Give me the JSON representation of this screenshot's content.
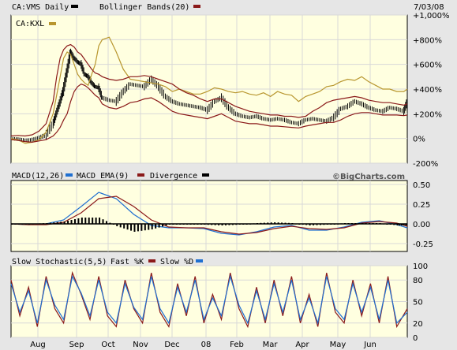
{
  "header": {
    "symbol_label": "CA:VMS Daily",
    "bollinger_label": "Bollinger Bands(20)",
    "date": "7/03/08",
    "compare_label": "CA:KXL"
  },
  "brand": "©BigCharts.com",
  "colors": {
    "panel_bg": "#ffffe0",
    "grid": "#d8d8d8",
    "price": "#000000",
    "compare": "#b8962e",
    "bollinger": "#8b1a1a",
    "macd": "#1f6fd1",
    "macd_ema": "#8b1a1a",
    "slow_k": "#8b1a1a",
    "slow_d": "#1f6fd1"
  },
  "chart_data": [
    {
      "type": "line",
      "title": "CA:VMS Daily",
      "y_axis_side": "right",
      "y_unit": "%",
      "ylim": [
        -200,
        1000
      ],
      "yticks": [
        -200,
        0,
        200,
        400,
        600,
        800,
        1000
      ],
      "ytick_labels": [
        "-200%",
        "0%",
        "+200%",
        "+400%",
        "+600%",
        "+800%",
        "+1,000%"
      ],
      "x_months": [
        "Aug",
        "Sep",
        "Oct",
        "Nov",
        "Dec",
        "08",
        "Feb",
        "Mar",
        "Apr",
        "May",
        "Jun"
      ],
      "x": [
        0,
        4,
        8,
        12,
        16,
        20,
        24,
        26,
        28,
        30,
        32,
        34,
        36,
        38,
        40,
        42,
        44,
        46,
        48,
        50,
        52,
        56,
        60,
        64,
        68,
        72,
        76,
        80,
        84,
        88,
        92,
        96,
        100,
        104,
        108,
        112,
        116,
        120,
        124,
        128,
        132,
        136,
        140,
        144,
        148,
        152,
        156,
        160,
        164,
        168,
        172,
        176,
        180,
        184,
        188,
        192,
        196,
        200,
        204,
        208,
        212,
        216,
        220,
        224,
        226
      ],
      "series": [
        {
          "name": "CA:VMS Daily",
          "style": "ohlc-bars",
          "values": [
            0,
            -5,
            -15,
            -10,
            5,
            30,
            120,
            210,
            300,
            400,
            550,
            700,
            650,
            620,
            600,
            520,
            500,
            450,
            420,
            410,
            330,
            310,
            300,
            380,
            440,
            430,
            420,
            480,
            420,
            340,
            300,
            280,
            270,
            260,
            250,
            230,
            300,
            330,
            250,
            200,
            180,
            170,
            180,
            160,
            150,
            160,
            150,
            130,
            120,
            150,
            160,
            150,
            140,
            170,
            240,
            260,
            300,
            280,
            250,
            230,
            220,
            250,
            240,
            220,
            300
          ]
        },
        {
          "name": "CA:KXL",
          "values": [
            0,
            -10,
            -40,
            -30,
            -10,
            50,
            200,
            350,
            500,
            650,
            700,
            680,
            600,
            520,
            480,
            450,
            430,
            520,
            600,
            750,
            800,
            820,
            700,
            560,
            480,
            470,
            460,
            450,
            440,
            420,
            380,
            400,
            380,
            360,
            360,
            380,
            410,
            400,
            380,
            370,
            380,
            360,
            350,
            370,
            340,
            380,
            360,
            350,
            300,
            340,
            360,
            380,
            420,
            430,
            460,
            480,
            470,
            500,
            460,
            430,
            400,
            400,
            380,
            380,
            400
          ]
        },
        {
          "name": "Bollinger Bands(20) upper",
          "values": [
            20,
            25,
            20,
            30,
            60,
            120,
            300,
            500,
            650,
            720,
            750,
            760,
            740,
            700,
            680,
            640,
            600,
            560,
            530,
            520,
            500,
            480,
            470,
            480,
            500,
            500,
            510,
            500,
            480,
            460,
            440,
            400,
            370,
            350,
            320,
            300,
            320,
            320,
            290,
            260,
            240,
            220,
            210,
            200,
            190,
            190,
            180,
            180,
            170,
            180,
            220,
            250,
            290,
            310,
            320,
            330,
            340,
            330,
            310,
            300,
            290,
            290,
            280,
            270,
            280
          ]
        },
        {
          "name": "Bollinger Bands(20) lower",
          "values": [
            -10,
            -15,
            -25,
            -30,
            -20,
            -10,
            20,
            50,
            90,
            150,
            200,
            300,
            380,
            420,
            440,
            430,
            410,
            380,
            350,
            330,
            280,
            250,
            240,
            260,
            290,
            300,
            320,
            330,
            300,
            260,
            220,
            200,
            190,
            180,
            170,
            160,
            180,
            200,
            170,
            140,
            130,
            120,
            120,
            110,
            100,
            100,
            95,
            90,
            85,
            100,
            110,
            120,
            130,
            130,
            150,
            180,
            200,
            210,
            210,
            200,
            190,
            190,
            190,
            185,
            190
          ]
        }
      ]
    },
    {
      "type": "line",
      "title": "MACD(12,26)",
      "ylim": [
        -0.35,
        0.55
      ],
      "yticks": [
        0.5,
        0.25,
        0.0,
        -0.25
      ],
      "ytick_labels": [
        "0.50",
        "0.25",
        "0.00",
        "-0.25"
      ],
      "x": [
        0,
        10,
        20,
        30,
        40,
        50,
        60,
        70,
        80,
        90,
        100,
        110,
        120,
        130,
        140,
        150,
        160,
        170,
        180,
        190,
        200,
        210,
        220,
        226
      ],
      "series": [
        {
          "name": "MACD",
          "values": [
            0.0,
            -0.01,
            0.0,
            0.05,
            0.22,
            0.4,
            0.32,
            0.12,
            -0.02,
            -0.05,
            -0.05,
            -0.06,
            -0.12,
            -0.14,
            -0.1,
            -0.04,
            -0.02,
            -0.08,
            -0.08,
            -0.04,
            0.02,
            0.04,
            -0.01,
            -0.05
          ]
        },
        {
          "name": "MACD EMA(9)",
          "values": [
            0.0,
            -0.01,
            -0.01,
            0.02,
            0.14,
            0.32,
            0.35,
            0.22,
            0.05,
            -0.04,
            -0.05,
            -0.05,
            -0.1,
            -0.13,
            -0.11,
            -0.06,
            -0.03,
            -0.06,
            -0.07,
            -0.05,
            0.01,
            0.03,
            0.01,
            -0.03
          ]
        },
        {
          "name": "Divergence",
          "style": "histogram",
          "values": [
            0.0,
            0.0,
            0.01,
            0.03,
            0.08,
            0.08,
            -0.03,
            -0.1,
            -0.07,
            -0.01,
            0.0,
            -0.01,
            -0.02,
            -0.01,
            0.01,
            0.02,
            0.01,
            -0.02,
            -0.01,
            0.01,
            0.01,
            0.01,
            -0.02,
            -0.02
          ]
        }
      ]
    },
    {
      "type": "line",
      "title": "Slow Stochastic(5,5)",
      "ylim": [
        0,
        100
      ],
      "yticks": [
        100,
        80,
        50,
        20,
        0
      ],
      "ytick_labels": [
        "100",
        "80",
        "50",
        "20",
        "0"
      ],
      "x": [
        0,
        5,
        10,
        15,
        20,
        25,
        30,
        35,
        40,
        45,
        50,
        55,
        60,
        65,
        70,
        75,
        80,
        85,
        90,
        95,
        100,
        105,
        110,
        115,
        120,
        125,
        130,
        135,
        140,
        145,
        150,
        155,
        160,
        165,
        170,
        175,
        180,
        185,
        190,
        195,
        200,
        205,
        210,
        215,
        220,
        226
      ],
      "series": [
        {
          "name": "Fast %K",
          "values": [
            80,
            30,
            70,
            15,
            85,
            40,
            20,
            90,
            60,
            25,
            85,
            30,
            15,
            80,
            40,
            20,
            90,
            35,
            15,
            75,
            30,
            85,
            20,
            60,
            25,
            90,
            40,
            15,
            70,
            20,
            80,
            30,
            85,
            20,
            60,
            15,
            90,
            35,
            20,
            80,
            30,
            75,
            20,
            85,
            15,
            40
          ]
        },
        {
          "name": "Slow %D",
          "values": [
            75,
            35,
            65,
            20,
            80,
            45,
            25,
            85,
            62,
            30,
            80,
            35,
            20,
            75,
            42,
            25,
            85,
            40,
            20,
            70,
            35,
            80,
            25,
            55,
            30,
            85,
            45,
            20,
            65,
            25,
            75,
            35,
            80,
            25,
            55,
            20,
            85,
            40,
            25,
            75,
            35,
            70,
            25,
            80,
            20,
            35
          ]
        }
      ]
    }
  ],
  "macd_legend": {
    "macd": "MACD(12,26)",
    "ema": "MACD EMA(9)",
    "divergence": "Divergence"
  },
  "stoch_legend": {
    "title": "Slow Stochastic(5,5)",
    "fast": "Fast %K",
    "slow": "Slow %D"
  }
}
